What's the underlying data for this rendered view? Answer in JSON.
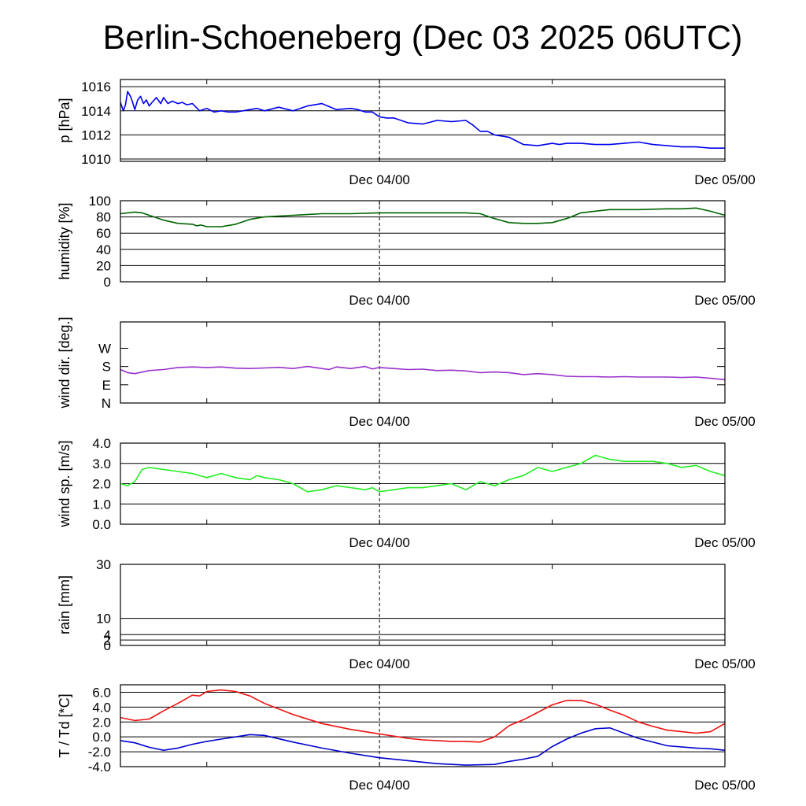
{
  "title": "Berlin-Schoeneberg (Dec 03 2025 06UTC)",
  "x_tick_labels": [
    "Dec 04/00",
    "Dec 05/00"
  ],
  "colors": {
    "pressure": "#0000ee",
    "humidity": "#006400",
    "wind_dir": "#9932cc",
    "wind_speed": "#22ee22",
    "temperature": "#ee1111",
    "dewpoint": "#0000cc",
    "grid": "#000000"
  },
  "chart_data": [
    {
      "type": "line",
      "id": "pressure",
      "ylabel": "p [hPa]",
      "ylim": [
        1009.8,
        1016.6
      ],
      "xlim": [
        0,
        42
      ],
      "yticks": [
        {
          "v": 1010,
          "label": "1010"
        },
        {
          "v": 1012,
          "label": "1012"
        },
        {
          "v": 1014,
          "label": "1014"
        },
        {
          "v": 1016,
          "label": "1016"
        }
      ],
      "series": [
        {
          "name": "pressure",
          "color": "#0000ee",
          "x": [
            0,
            0.2,
            0.35,
            0.5,
            0.7,
            0.85,
            1.0,
            1.2,
            1.4,
            1.6,
            1.8,
            2.0,
            2.2,
            2.5,
            2.8,
            3.0,
            3.3,
            3.6,
            4.0,
            4.3,
            4.6,
            5.0,
            5.5,
            6.0,
            6.5,
            7.0,
            7.5,
            8.0,
            8.5,
            9.0,
            9.5,
            10,
            11,
            12,
            13,
            14,
            15,
            16,
            16.5,
            17,
            17.5,
            18,
            18.5,
            19,
            19.5,
            20,
            21,
            22,
            23,
            24,
            24.5,
            25,
            25.5,
            26,
            27,
            27.5,
            28,
            29,
            29.5,
            30,
            30.5,
            31,
            31.5,
            32,
            33,
            34,
            35,
            36,
            37,
            38,
            39,
            40,
            41,
            41.5,
            42
          ],
          "values": [
            1014.7,
            1014.0,
            1014.5,
            1015.6,
            1015.2,
            1014.7,
            1014.1,
            1014.9,
            1015.2,
            1014.6,
            1014.9,
            1014.4,
            1014.7,
            1015.1,
            1014.6,
            1015.1,
            1014.6,
            1014.8,
            1014.6,
            1014.7,
            1014.5,
            1014.6,
            1014.0,
            1014.2,
            1013.9,
            1014.0,
            1013.9,
            1013.9,
            1014.0,
            1014.1,
            1014.2,
            1014.0,
            1014.3,
            1014.0,
            1014.4,
            1014.6,
            1014.1,
            1014.2,
            1014.1,
            1013.9,
            1013.9,
            1013.5,
            1013.4,
            1013.4,
            1013.2,
            1013.0,
            1012.9,
            1013.2,
            1013.1,
            1013.2,
            1012.8,
            1012.3,
            1012.3,
            1012.0,
            1011.8,
            1011.5,
            1011.2,
            1011.1,
            1011.2,
            1011.3,
            1011.2,
            1011.3,
            1011.3,
            1011.3,
            1011.2,
            1011.2,
            1011.3,
            1011.4,
            1011.2,
            1011.1,
            1011.0,
            1011.0,
            1010.9,
            1010.9,
            1010.9
          ]
        }
      ]
    },
    {
      "type": "line",
      "id": "humidity",
      "ylabel": "humidity [%]",
      "ylim": [
        0,
        100
      ],
      "xlim": [
        0,
        42
      ],
      "yticks": [
        {
          "v": 0,
          "label": "0"
        },
        {
          "v": 20,
          "label": "20"
        },
        {
          "v": 40,
          "label": "40"
        },
        {
          "v": 60,
          "label": "60"
        },
        {
          "v": 80,
          "label": "80"
        },
        {
          "v": 100,
          "label": "100"
        }
      ],
      "series": [
        {
          "name": "humidity",
          "color": "#006400",
          "x": [
            0,
            1,
            1.5,
            2,
            3,
            4,
            5,
            5.3,
            5.6,
            6,
            7,
            8,
            9,
            10,
            12,
            14,
            16,
            18,
            20,
            22,
            24,
            25,
            26,
            27,
            28,
            29,
            30,
            31,
            32,
            34,
            36,
            38,
            39,
            40,
            41,
            42
          ],
          "values": [
            84,
            86,
            85,
            82,
            76,
            72,
            71,
            69,
            70,
            68,
            68,
            71,
            77,
            80,
            82,
            84,
            84,
            85,
            85,
            85,
            85,
            84,
            78,
            73,
            72,
            72,
            73,
            78,
            85,
            89,
            89,
            90,
            90,
            91,
            87,
            82
          ]
        }
      ]
    },
    {
      "type": "line",
      "id": "wind_dir",
      "ylabel": "wind dir. [deg.]",
      "ylim": [
        0,
        400
      ],
      "xlim": [
        0,
        42
      ],
      "yticks": [
        {
          "v": 0,
          "label": "N"
        },
        {
          "v": 90,
          "label": "E"
        },
        {
          "v": 180,
          "label": "S"
        },
        {
          "v": 270,
          "label": "W"
        }
      ],
      "series": [
        {
          "name": "wind_dir",
          "color": "#9932cc",
          "x": [
            0,
            0.5,
            1,
            2,
            3,
            4,
            5,
            6,
            7,
            8,
            9,
            10,
            11,
            12,
            13,
            14,
            14.5,
            15,
            16,
            17,
            17.5,
            18,
            19,
            20,
            21,
            22,
            23,
            24,
            25,
            26,
            27,
            28,
            29,
            30,
            31,
            32,
            33,
            34,
            35,
            36,
            37,
            38,
            39,
            40,
            41,
            42
          ],
          "values": [
            165,
            150,
            145,
            160,
            165,
            175,
            178,
            175,
            178,
            172,
            170,
            173,
            176,
            170,
            180,
            170,
            165,
            178,
            170,
            180,
            168,
            175,
            170,
            165,
            167,
            160,
            162,
            158,
            150,
            153,
            150,
            140,
            145,
            140,
            132,
            130,
            130,
            128,
            130,
            128,
            128,
            128,
            126,
            128,
            122,
            115
          ]
        }
      ]
    },
    {
      "type": "line",
      "id": "wind_speed",
      "ylabel": "wind sp. [m/s]",
      "ylim": [
        0,
        4.0
      ],
      "xlim": [
        0,
        42
      ],
      "yticks": [
        {
          "v": 0,
          "label": "0.0"
        },
        {
          "v": 1,
          "label": "1.0"
        },
        {
          "v": 2,
          "label": "2.0"
        },
        {
          "v": 3,
          "label": "3.0"
        },
        {
          "v": 4,
          "label": "4.0"
        }
      ],
      "series": [
        {
          "name": "wind_speed",
          "color": "#22ee22",
          "x": [
            0,
            0.5,
            1,
            1.5,
            2,
            3,
            4,
            5,
            6,
            7,
            8,
            9,
            9.5,
            10,
            11,
            12,
            13,
            14,
            15,
            16,
            17,
            17.5,
            18,
            19,
            20,
            21,
            22,
            23,
            24,
            25,
            26,
            27,
            28,
            29,
            30,
            31,
            32,
            33,
            34,
            35,
            36,
            37,
            38,
            39,
            40,
            41,
            41.5,
            42
          ],
          "values": [
            2.0,
            1.9,
            2.1,
            2.7,
            2.8,
            2.7,
            2.6,
            2.5,
            2.3,
            2.5,
            2.3,
            2.2,
            2.4,
            2.3,
            2.2,
            2.0,
            1.6,
            1.7,
            1.9,
            1.8,
            1.7,
            1.8,
            1.6,
            1.7,
            1.8,
            1.8,
            1.9,
            2.0,
            1.7,
            2.1,
            1.9,
            2.2,
            2.4,
            2.8,
            2.6,
            2.8,
            3.0,
            3.4,
            3.2,
            3.1,
            3.1,
            3.1,
            3.0,
            2.8,
            2.9,
            2.6,
            2.5,
            2.4
          ]
        }
      ]
    },
    {
      "type": "bar",
      "id": "rain",
      "ylabel": "rain [mm]",
      "ylim": [
        0,
        30
      ],
      "xlim": [
        0,
        42
      ],
      "yticks": [
        {
          "v": 0,
          "label": "0"
        },
        {
          "v": 2,
          "label": "2"
        },
        {
          "v": 4,
          "label": "4"
        },
        {
          "v": 10,
          "label": "10"
        },
        {
          "v": 30,
          "label": "30"
        }
      ],
      "series": []
    },
    {
      "type": "line",
      "id": "temperature",
      "ylabel": "T / Td [*C]",
      "ylim": [
        -4.0,
        7.0
      ],
      "xlim": [
        0,
        42
      ],
      "yticks": [
        {
          "v": -4,
          "label": "-4.0"
        },
        {
          "v": -2,
          "label": "-2.0"
        },
        {
          "v": 0,
          "label": "0.0"
        },
        {
          "v": 2,
          "label": "2.0"
        },
        {
          "v": 4,
          "label": "4.0"
        },
        {
          "v": 6,
          "label": "6.0"
        }
      ],
      "series": [
        {
          "name": "T",
          "color": "#ee1111",
          "x": [
            0,
            1,
            2,
            3,
            4,
            5,
            5.5,
            6,
            7,
            8,
            9,
            10,
            12,
            14,
            16,
            18,
            20,
            21,
            22,
            23,
            24,
            25,
            26,
            27,
            28,
            29,
            30,
            31,
            32,
            33,
            34,
            35,
            36,
            37,
            38,
            39,
            40,
            41,
            42
          ],
          "values": [
            2.6,
            2.2,
            2.4,
            3.5,
            4.5,
            5.6,
            5.5,
            6.1,
            6.3,
            6.1,
            5.5,
            4.5,
            3.0,
            1.8,
            1.0,
            0.4,
            -0.2,
            -0.4,
            -0.5,
            -0.6,
            -0.6,
            -0.7,
            0.0,
            1.5,
            2.3,
            3.3,
            4.3,
            4.9,
            4.9,
            4.4,
            3.6,
            2.9,
            2.0,
            1.4,
            0.9,
            0.7,
            0.5,
            0.7,
            1.8
          ]
        },
        {
          "name": "Td",
          "color": "#0000cc",
          "x": [
            0,
            1,
            2,
            3,
            4,
            5,
            6,
            7,
            8,
            9,
            10,
            12,
            14,
            16,
            18,
            20,
            22,
            24,
            26,
            27,
            28,
            29,
            30,
            31,
            32,
            33,
            34,
            35,
            36,
            38,
            40,
            41,
            42
          ],
          "values": [
            -0.5,
            -0.8,
            -1.4,
            -1.8,
            -1.5,
            -1.0,
            -0.6,
            -0.3,
            0.0,
            0.3,
            0.2,
            -0.7,
            -1.5,
            -2.2,
            -2.8,
            -3.2,
            -3.6,
            -3.8,
            -3.7,
            -3.3,
            -3.0,
            -2.6,
            -1.3,
            -0.3,
            0.5,
            1.1,
            1.2,
            0.5,
            -0.2,
            -1.2,
            -1.5,
            -1.6,
            -1.8
          ]
        }
      ]
    }
  ]
}
